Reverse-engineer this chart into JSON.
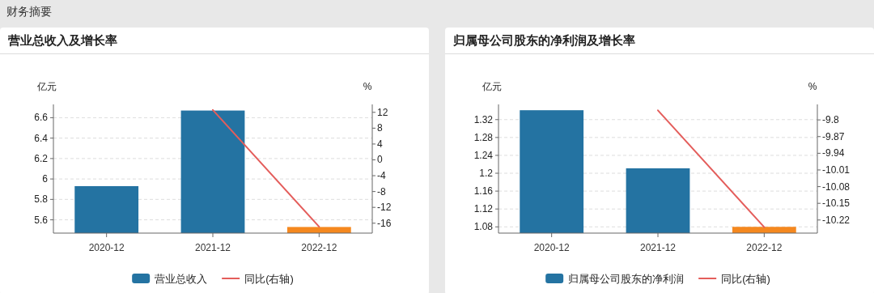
{
  "chart_data": [
    {
      "type": "bar",
      "title": "营业总收入及增长率",
      "annotations": [
        "财务摘要"
      ],
      "ylabel": "亿元",
      "y2label": "%",
      "categories": [
        "2020-12",
        "2021-12",
        "2022-12"
      ],
      "series": [
        {
          "name": "营业总收入",
          "color": "#2473a2",
          "colors": [
            "#2473a2",
            "#2473a2",
            "#f5881f"
          ],
          "values": [
            5.93,
            6.67,
            5.53
          ]
        },
        {
          "name": "同比(右轴)",
          "type": "line",
          "axis": "y2",
          "color": "#e45d5b",
          "values": [
            null,
            12.6,
            -16.9
          ]
        }
      ],
      "ylim": [
        5.47,
        6.73
      ],
      "yticks": [
        {
          "value": 5.6,
          "label": "5.6"
        },
        {
          "value": 5.8,
          "label": "5.8"
        },
        6,
        {
          "value": 6.2,
          "label": "6.2"
        },
        {
          "value": 6.4,
          "label": "6.4"
        },
        {
          "value": 6.6,
          "label": "6.6"
        }
      ],
      "y2lim": [
        -18.5,
        14
      ],
      "y2ticks": [
        -16,
        -12,
        -8,
        -4,
        0,
        4,
        8,
        12
      ],
      "grid": "y",
      "legend": "bottom"
    },
    {
      "type": "bar",
      "title": "归属母公司股东的净利润及增长率",
      "ylabel": "亿元",
      "y2label": "%",
      "categories": [
        "2020-12",
        "2021-12",
        "2022-12"
      ],
      "series": [
        {
          "name": "归属母公司股东的净利润",
          "color": "#2473a2",
          "colors": [
            "#2473a2",
            "#2473a2",
            "#f5881f"
          ],
          "values": [
            1.341,
            1.211,
            1.08
          ]
        },
        {
          "name": "同比(右轴)",
          "type": "line",
          "axis": "y2",
          "color": "#e45d5b",
          "values": [
            null,
            -9.76,
            -10.25
          ]
        }
      ],
      "ylim": [
        1.066,
        1.354
      ],
      "yticks": [
        1.08,
        1.12,
        1.16,
        {
          "value": 1.2,
          "label": "1.2"
        },
        1.24,
        1.28,
        1.32
      ],
      "y2lim": [
        -10.275,
        -9.735
      ],
      "y2ticks": [
        -10.22,
        -10.15,
        -10.08,
        -10.01,
        -9.94,
        -9.87,
        {
          "value": -9.8,
          "label": "-9.8"
        }
      ],
      "grid": "y",
      "legend": "bottom"
    }
  ]
}
